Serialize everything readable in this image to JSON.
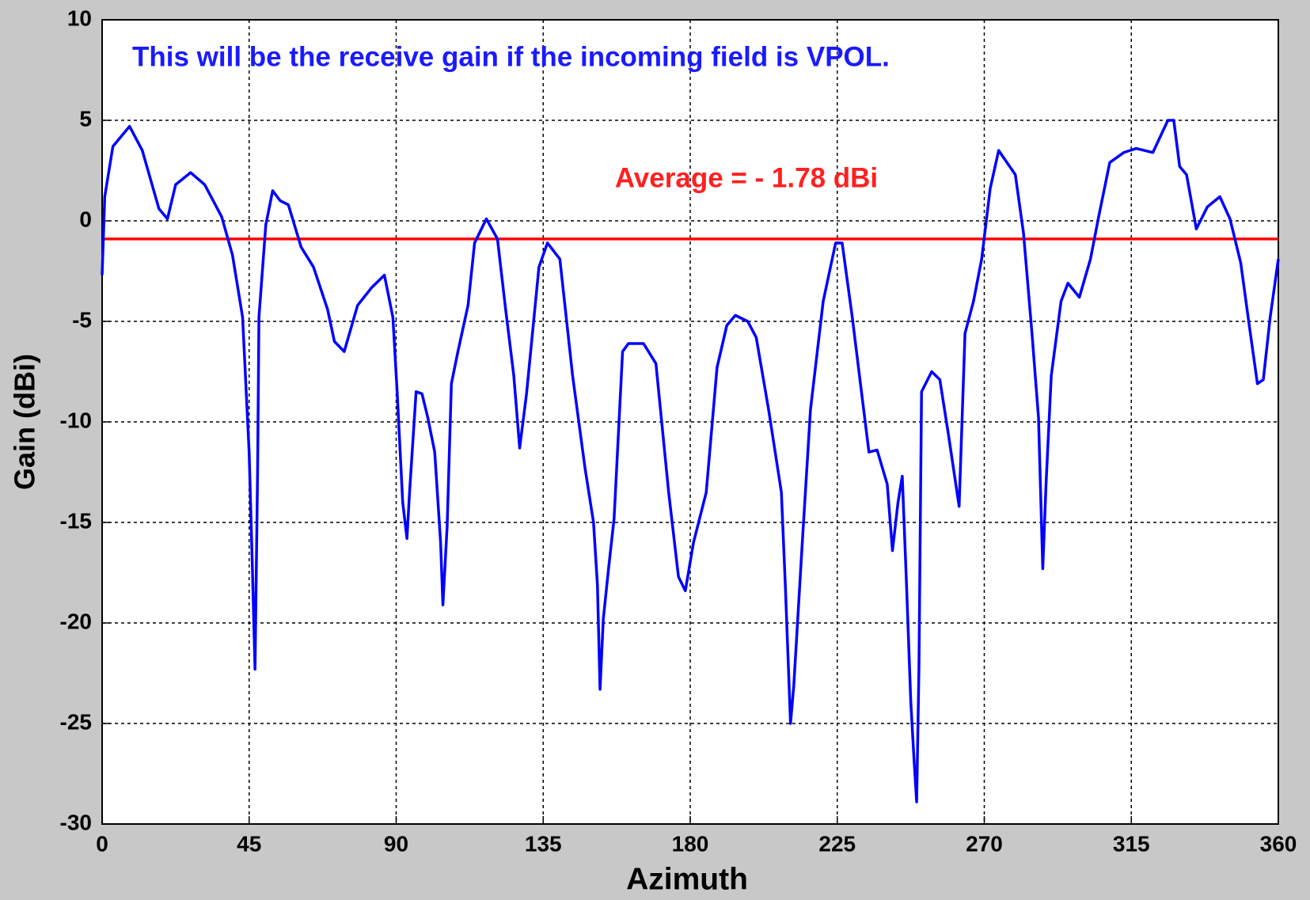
{
  "chart_data": {
    "type": "line",
    "xlabel": "Azimuth",
    "ylabel": "Gain (dBi)",
    "annotations": [
      {
        "text": "This will be the receive gain if the incoming field is VPOL.",
        "color": "#1a1aff"
      },
      {
        "text": "Average = - 1.78 dBi",
        "color": "#ff2020"
      }
    ],
    "reference_line": {
      "value": -0.9,
      "color": "#ff0000"
    },
    "color": "#0000ff",
    "grid": true,
    "xlim": [
      0,
      360
    ],
    "ylim": [
      -30,
      10
    ],
    "xticks": [
      0,
      45,
      90,
      135,
      180,
      225,
      270,
      315,
      360
    ],
    "yticks": [
      -30,
      -25,
      -20,
      -15,
      -10,
      -5,
      0,
      5,
      10
    ],
    "x": [
      0,
      0.8,
      3.3,
      8.4,
      12.3,
      17.4,
      20,
      22.5,
      27.1,
      31.4,
      36.6,
      39.9,
      43,
      45,
      46,
      46.8,
      47.6,
      48,
      50.1,
      52.2,
      54.5,
      57,
      60.9,
      64.7,
      69,
      71.1,
      74.1,
      78.2,
      82.6,
      86.4,
      89,
      90.3,
      92,
      93.3,
      94.1,
      96.1,
      97.9,
      99.7,
      101.8,
      103.6,
      104.3,
      105.6,
      106.9,
      108.9,
      112,
      114,
      117.6,
      121,
      123.5,
      126,
      127.8,
      129.9,
      133.7,
      136.3,
      140.1,
      144,
      147.8,
      150.4,
      151.6,
      152.4,
      153.4,
      155,
      156.7,
      159.3,
      161.1,
      165.7,
      169.5,
      173.4,
      176.4,
      178.5,
      181,
      184.9,
      188.2,
      191.2,
      193.8,
      197.6,
      200.2,
      204,
      207.9,
      209.1,
      210.7,
      211.7,
      214.3,
      216.8,
      220.7,
      224.5,
      226.5,
      229.6,
      232.1,
      234.7,
      237.2,
      240.3,
      241.9,
      243.6,
      244.9,
      246.2,
      247.5,
      248.5,
      249.3,
      250,
      250.8,
      253.9,
      256.4,
      259,
      262.3,
      264.1,
      266.7,
      269.2,
      271.8,
      274.4,
      279.5,
      282,
      284.6,
      286.6,
      287.9,
      288.9,
      290.5,
      293.5,
      295.6,
      299.1,
      302.5,
      305,
      308.4,
      312.7,
      316.5,
      321.6,
      326.2,
      328,
      329.8,
      331.9,
      334.9,
      338.3,
      342.1,
      345.2,
      348.5,
      351.1,
      353.6,
      355.4,
      357.5,
      360
    ],
    "values": [
      -2.7,
      1.2,
      3.7,
      4.7,
      3.5,
      0.6,
      0.1,
      1.8,
      2.4,
      1.8,
      0.2,
      -1.7,
      -4.8,
      -11.5,
      -17.3,
      -22.3,
      -12.3,
      -4.8,
      -0.2,
      1.5,
      1.0,
      0.8,
      -1.3,
      -2.3,
      -4.4,
      -6.0,
      -6.5,
      -4.2,
      -3.3,
      -2.7,
      -4.8,
      -8.5,
      -14,
      -15.8,
      -13.5,
      -8.5,
      -8.6,
      -9.8,
      -11.5,
      -16,
      -19.1,
      -15.2,
      -8.1,
      -6.5,
      -4.2,
      -1.1,
      0.1,
      -0.9,
      -4.4,
      -7.7,
      -11.3,
      -8.6,
      -2.3,
      -1.1,
      -1.9,
      -7.7,
      -12.3,
      -15,
      -18.1,
      -23.3,
      -19.8,
      -17.3,
      -14.8,
      -6.5,
      -6.1,
      -6.1,
      -7.1,
      -13.5,
      -17.7,
      -18.4,
      -16,
      -13.5,
      -7.3,
      -5.2,
      -4.7,
      -5.0,
      -5.8,
      -9.4,
      -13.5,
      -18.1,
      -25,
      -23.1,
      -16,
      -9.4,
      -4.0,
      -1.1,
      -1.1,
      -4.8,
      -8.1,
      -11.5,
      -11.4,
      -13.1,
      -16.4,
      -14,
      -12.7,
      -18.1,
      -23.9,
      -26.8,
      -28.9,
      -22.3,
      -8.5,
      -7.5,
      -7.9,
      -10.6,
      -14.2,
      -5.6,
      -4.0,
      -1.9,
      1.6,
      3.5,
      2.3,
      -0.6,
      -5.6,
      -9.8,
      -17.3,
      -13.1,
      -7.7,
      -4.0,
      -3.1,
      -3.8,
      -1.9,
      0.2,
      2.9,
      3.4,
      3.6,
      3.4,
      5.0,
      5.0,
      2.7,
      2.3,
      -0.4,
      0.7,
      1.2,
      0.1,
      -2.1,
      -5.2,
      -8.1,
      -7.9,
      -4.8,
      -1.9
    ]
  }
}
